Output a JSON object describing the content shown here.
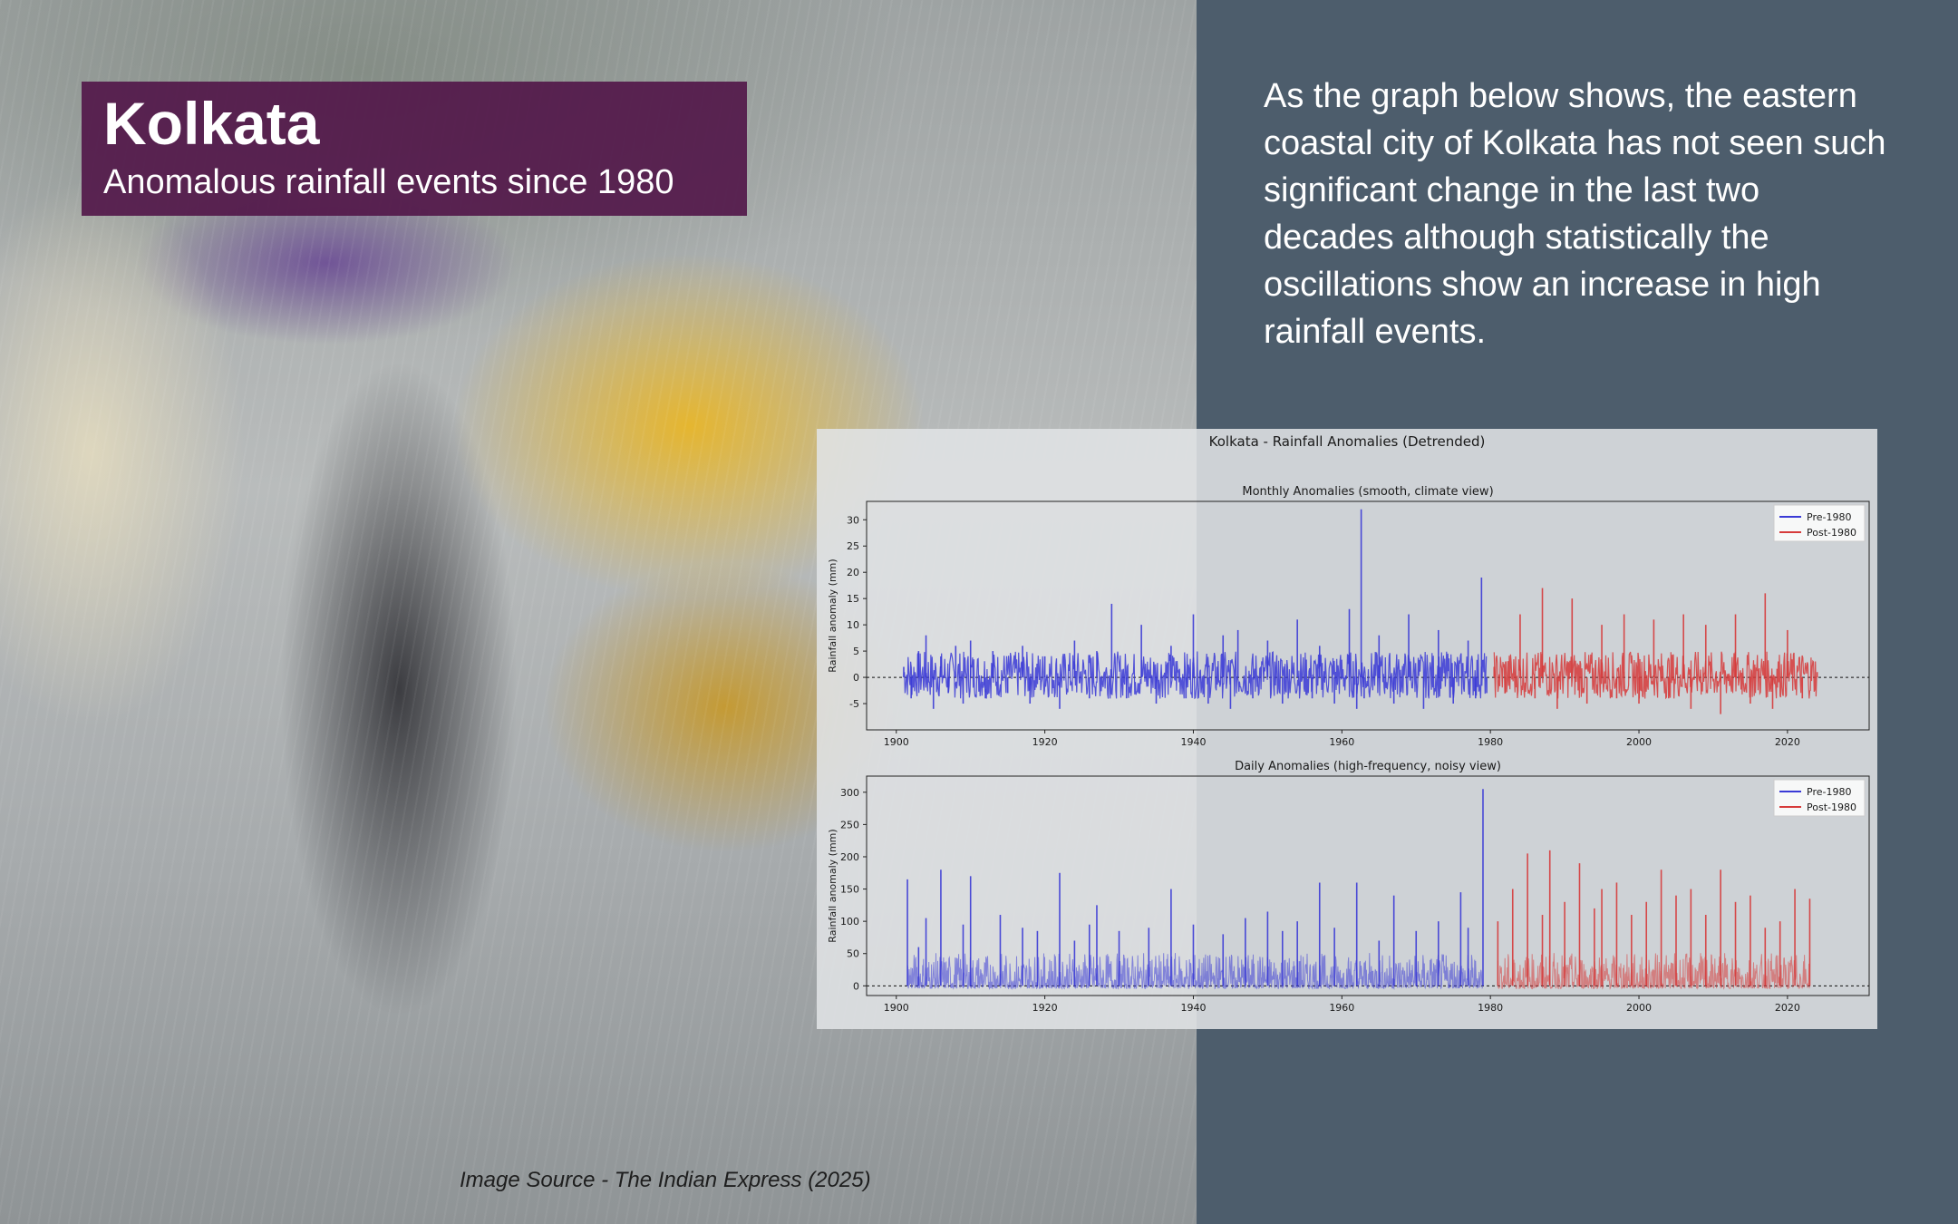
{
  "title": {
    "city": "Kolkata",
    "subtitle": "Anomalous rainfall events since 1980"
  },
  "description": "As the graph below shows, the eastern coastal city of Kolkata has not seen such significant change in the last two decades although statistically the oscillations show an increase in high rainfall events.",
  "image_source": "Image Source - The Indian Express (2025)",
  "colors": {
    "pre": "#3a3ad6",
    "post": "#d63a3a",
    "title_box": "#52184a",
    "right_panel": "#4d5d6c"
  },
  "chart_data": [
    {
      "type": "line",
      "suptitle": "Kolkata - Rainfall Anomalies (Detrended)",
      "title": "Monthly Anomalies (smooth, climate view)",
      "ylabel": "Rainfall anomaly (mm)",
      "xlabel": "",
      "xlim": [
        1896,
        2031
      ],
      "ylim": [
        -10,
        33.5
      ],
      "xticks": [
        1900,
        1920,
        1940,
        1960,
        1980,
        2000,
        2020
      ],
      "yticks": [
        -5,
        0,
        5,
        10,
        15,
        20,
        25,
        30
      ],
      "zero_line": true,
      "legend": "top-right",
      "series": [
        {
          "name": "Pre-1980",
          "color": "#3a3ad6",
          "x": [
            1901,
            1902,
            1903,
            1904,
            1905,
            1906,
            1907,
            1908,
            1909,
            1910,
            1912,
            1913,
            1915,
            1917,
            1918,
            1920,
            1922,
            1924,
            1926,
            1927,
            1929,
            1931,
            1933,
            1935,
            1937,
            1939,
            1940,
            1942,
            1944,
            1945,
            1946,
            1948,
            1950,
            1952,
            1954,
            1956,
            1957,
            1959,
            1961,
            1962,
            1962.6,
            1963,
            1965,
            1967,
            1969,
            1971,
            1973,
            1975,
            1977,
            1978,
            1978.8,
            1979.5
          ],
          "y": [
            2,
            -4,
            5,
            8,
            -6,
            4,
            -3,
            6,
            -5,
            7,
            -4,
            5,
            -3,
            6,
            -5,
            4,
            -6,
            7,
            -4,
            5,
            14,
            -4,
            10,
            -5,
            6,
            -4,
            12,
            -5,
            8,
            -6,
            9,
            -4,
            7,
            -5,
            11,
            -4,
            6,
            -5,
            13,
            -6,
            32,
            -4,
            8,
            -5,
            12,
            -6,
            9,
            -5,
            7,
            -4,
            19,
            -3
          ]
        },
        {
          "name": "Post-1980",
          "color": "#d63a3a",
          "x": [
            1980.5,
            1982,
            1984,
            1986,
            1987,
            1989,
            1991,
            1993,
            1995,
            1997,
            1998,
            2000,
            2002,
            2004,
            2006,
            2007,
            2009,
            2011,
            2013,
            2015,
            2017,
            2018,
            2020,
            2022,
            2024
          ],
          "y": [
            2,
            -3,
            12,
            -4,
            17,
            -6,
            15,
            -5,
            10,
            -4,
            12,
            -5,
            11,
            -4,
            12,
            -6,
            10,
            -7,
            12,
            -5,
            16,
            -6,
            9,
            -4,
            1
          ]
        }
      ]
    },
    {
      "type": "line",
      "title": "Daily Anomalies (high-frequency, noisy view)",
      "ylabel": "Rainfall anomaly (mm)",
      "xlabel": "",
      "xlim": [
        1896,
        2031
      ],
      "ylim": [
        -15,
        325
      ],
      "xticks": [
        1900,
        1920,
        1940,
        1960,
        1980,
        2000,
        2020
      ],
      "yticks": [
        0,
        50,
        100,
        150,
        200,
        250,
        300
      ],
      "zero_line": true,
      "legend": "top-right",
      "series": [
        {
          "name": "Pre-1980",
          "color": "#3a3ad6",
          "x": [
            1901.5,
            1903,
            1904,
            1906,
            1909,
            1910,
            1914,
            1917,
            1919,
            1922,
            1924,
            1926,
            1927,
            1930,
            1934,
            1937,
            1940,
            1944,
            1947,
            1950,
            1952,
            1954,
            1957,
            1959,
            1962,
            1965,
            1967,
            1970,
            1973,
            1976,
            1977,
            1979
          ],
          "y": [
            165,
            60,
            105,
            180,
            95,
            170,
            110,
            90,
            85,
            175,
            70,
            95,
            125,
            85,
            90,
            150,
            95,
            80,
            105,
            115,
            85,
            100,
            160,
            90,
            160,
            70,
            140,
            85,
            100,
            145,
            90,
            305
          ]
        },
        {
          "name": "Post-1980",
          "color": "#d63a3a",
          "x": [
            1981,
            1983,
            1985,
            1987,
            1988,
            1990,
            1992,
            1994,
            1995,
            1997,
            1999,
            2001,
            2003,
            2005,
            2007,
            2009,
            2011,
            2013,
            2015,
            2017,
            2019,
            2021,
            2023
          ],
          "y": [
            100,
            150,
            205,
            110,
            210,
            130,
            190,
            120,
            150,
            160,
            110,
            130,
            180,
            140,
            150,
            110,
            180,
            130,
            140,
            90,
            100,
            150,
            135
          ]
        }
      ]
    }
  ]
}
